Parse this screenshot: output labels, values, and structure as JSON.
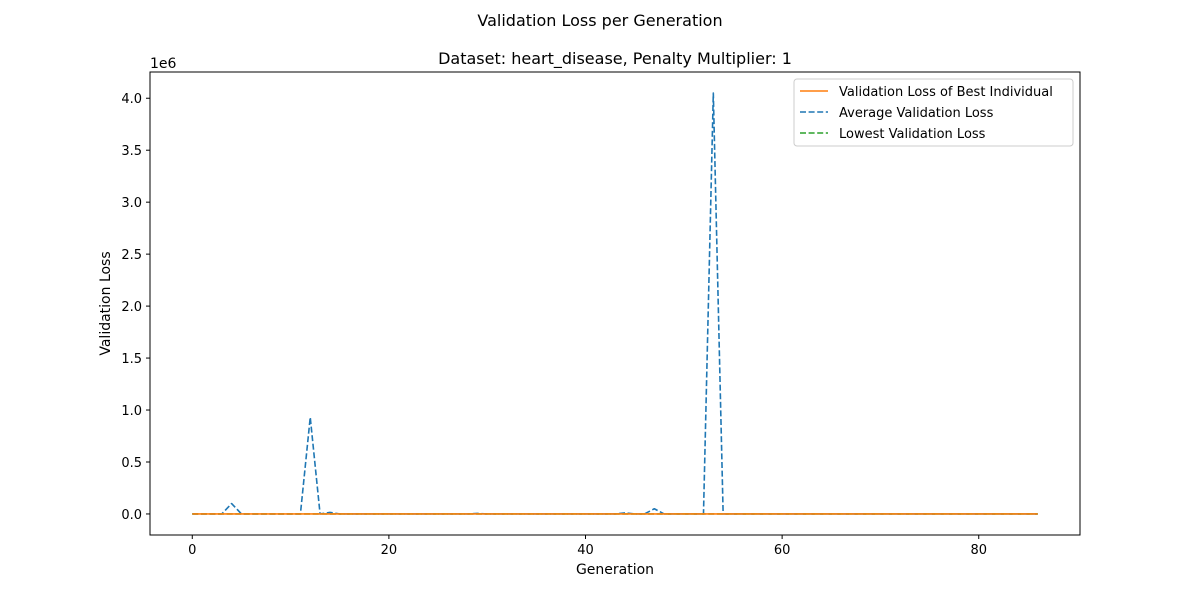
{
  "figure": {
    "suptitle": "Validation Loss per Generation"
  },
  "chart_data": {
    "type": "line",
    "title": "Dataset: heart_disease, Penalty Multiplier: 1",
    "xlabel": "Generation",
    "ylabel": "Validation Loss",
    "y_scale_label": "1e6",
    "xlim": [
      -4.3,
      90.3
    ],
    "ylim": [
      -0.2025,
      4.2525
    ],
    "xticks": [
      0,
      20,
      40,
      60,
      80
    ],
    "xtick_labels": [
      "0",
      "20",
      "40",
      "60",
      "80"
    ],
    "yticks": [
      0.0,
      0.5,
      1.0,
      1.5,
      2.0,
      2.5,
      3.0,
      3.5,
      4.0
    ],
    "ytick_labels": [
      "0.0",
      "0.5",
      "1.0",
      "1.5",
      "2.0",
      "2.5",
      "3.0",
      "3.5",
      "4.0"
    ],
    "grid": false,
    "legend_position": "top-right",
    "x": [
      0,
      1,
      2,
      3,
      4,
      5,
      6,
      7,
      8,
      9,
      10,
      11,
      12,
      13,
      14,
      15,
      16,
      17,
      18,
      19,
      20,
      21,
      22,
      23,
      24,
      25,
      26,
      27,
      28,
      29,
      30,
      31,
      32,
      33,
      34,
      35,
      36,
      37,
      38,
      39,
      40,
      41,
      42,
      43,
      44,
      45,
      46,
      47,
      48,
      49,
      50,
      51,
      52,
      53,
      54,
      55,
      56,
      57,
      58,
      59,
      60,
      61,
      62,
      63,
      64,
      65,
      66,
      67,
      68,
      69,
      70,
      71,
      72,
      73,
      74,
      75,
      76,
      77,
      78,
      79,
      80,
      81,
      82,
      83,
      84,
      85,
      86
    ],
    "series": [
      {
        "name": "Validation Loss of Best Individual",
        "color": "#ff7f0e",
        "style": "solid",
        "values": [
          0,
          0,
          0,
          0,
          0,
          0,
          0,
          0,
          0,
          0,
          0,
          0,
          0,
          0,
          0,
          0,
          0,
          0,
          0,
          0,
          0,
          0,
          0,
          0,
          0,
          0,
          0,
          0,
          0,
          0,
          0,
          0,
          0,
          0,
          0,
          0,
          0,
          0,
          0,
          0,
          0,
          0,
          0,
          0,
          0,
          0,
          0,
          0,
          0,
          0,
          0,
          0,
          0,
          0,
          0,
          0,
          0,
          0,
          0,
          0,
          0,
          0,
          0,
          0,
          0,
          0,
          0,
          0,
          0,
          0,
          0,
          0,
          0,
          0,
          0,
          0,
          0,
          0,
          0,
          0,
          0,
          0,
          0,
          0,
          0,
          0,
          0
        ]
      },
      {
        "name": "Average Validation Loss",
        "color": "#1f77b4",
        "style": "dashed",
        "values": [
          0,
          0,
          0,
          0,
          0.1,
          0,
          0,
          0,
          0,
          0,
          0,
          0,
          0.93,
          0,
          0.015,
          0,
          0,
          0,
          0,
          0,
          0,
          0,
          0,
          0,
          0,
          0,
          0,
          0,
          0,
          0.005,
          0,
          0,
          0,
          0,
          0,
          0,
          0,
          0,
          0,
          0,
          0,
          0,
          0,
          0,
          0.01,
          0,
          0,
          0.05,
          0,
          0,
          0,
          0,
          0,
          4.05,
          0,
          0,
          0,
          0,
          0,
          0,
          0,
          0,
          0,
          0,
          0,
          0,
          0,
          0,
          0,
          0,
          0,
          0,
          0,
          0,
          0,
          0,
          0,
          0,
          0,
          0,
          0,
          0,
          0,
          0,
          0,
          0,
          0
        ]
      },
      {
        "name": "Lowest Validation Loss",
        "color": "#2ca02c",
        "style": "dashed",
        "values": [
          0,
          0,
          0,
          0,
          0,
          0,
          0,
          0,
          0,
          0,
          0,
          0,
          0,
          0,
          0,
          0,
          0,
          0,
          0,
          0,
          0,
          0,
          0,
          0,
          0,
          0,
          0,
          0,
          0,
          0,
          0,
          0,
          0,
          0,
          0,
          0,
          0,
          0,
          0,
          0,
          0,
          0,
          0,
          0,
          0,
          0,
          0,
          0,
          0,
          0,
          0,
          0,
          0,
          0,
          0,
          0,
          0,
          0,
          0,
          0,
          0,
          0,
          0,
          0,
          0,
          0,
          0,
          0,
          0,
          0,
          0,
          0,
          0,
          0,
          0,
          0,
          0,
          0,
          0,
          0,
          0,
          0,
          0,
          0,
          0,
          0,
          0
        ]
      }
    ]
  }
}
